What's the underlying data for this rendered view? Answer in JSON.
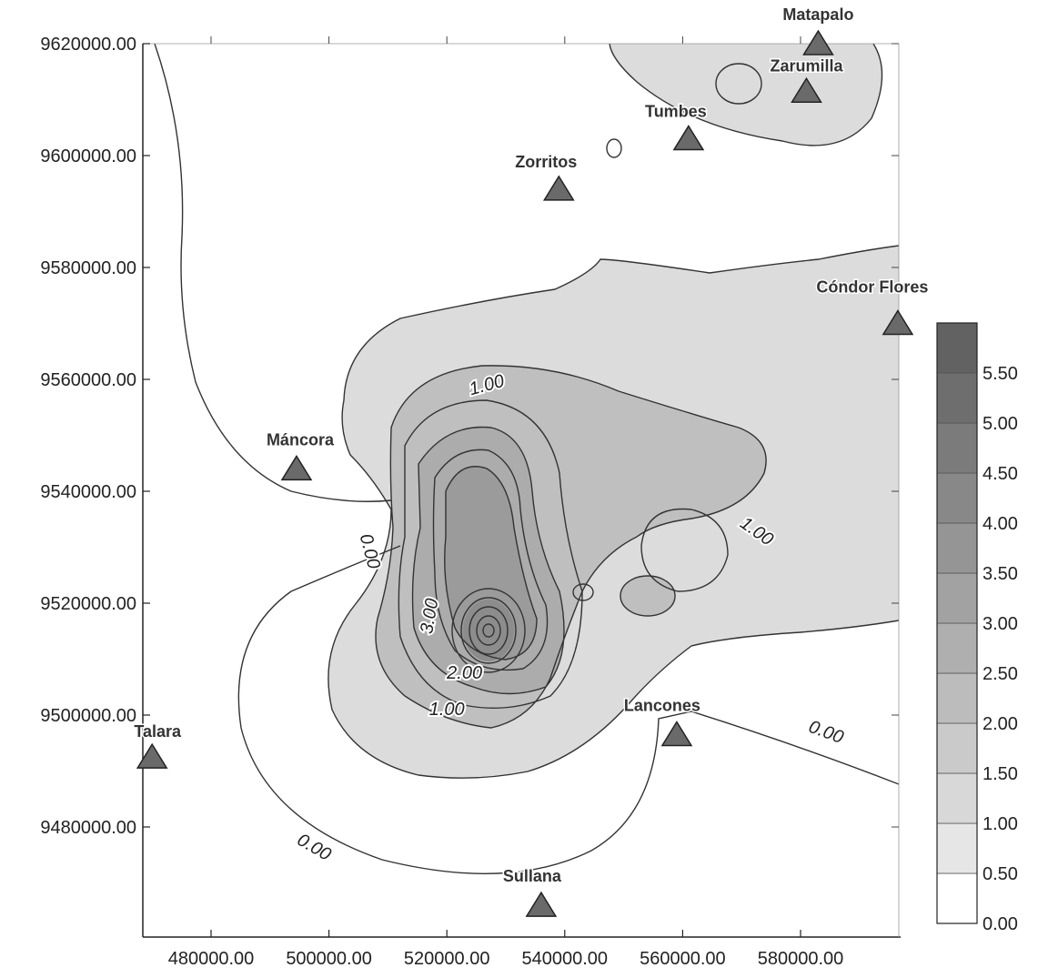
{
  "map": {
    "type": "contour",
    "y_axis": {
      "ticks": [
        9620000,
        9600000,
        9580000,
        9560000,
        9540000,
        9520000,
        9500000,
        9480000
      ],
      "tick_labels": [
        "9620000.00",
        "9600000.00",
        "9580000.00",
        "9560000.00",
        "9540000.00",
        "9520000.00",
        "9500000.00",
        "9480000.00"
      ]
    },
    "x_axis": {
      "ticks": [
        480000,
        500000,
        520000,
        540000,
        560000,
        580000
      ],
      "tick_labels": [
        "480000.00",
        "500000.00",
        "520000.00",
        "540000.00",
        "560000.00",
        "580000.00"
      ]
    },
    "stations": [
      {
        "name": "Matapalo",
        "x": 583000,
        "y": 9620000
      },
      {
        "name": "Zarumilla",
        "x": 581000,
        "y": 9611500
      },
      {
        "name": "Tumbes",
        "x": 561000,
        "y": 9603000
      },
      {
        "name": "Zorritos",
        "x": 539000,
        "y": 9594000
      },
      {
        "name": "Cóndor Flores",
        "x": 596500,
        "y": 9570000
      },
      {
        "name": "Máncora",
        "x": 494500,
        "y": 9544000
      },
      {
        "name": "Talara",
        "x": 470000,
        "y": 9492500
      },
      {
        "name": "Lancones",
        "x": 559000,
        "y": 9496500
      },
      {
        "name": "Sullana",
        "x": 536000,
        "y": 9466000
      }
    ],
    "contour_labels": [
      {
        "text": "1.00",
        "x": 527000,
        "y": 9558000
      },
      {
        "text": "1.00",
        "x": 572000,
        "y": 9532000
      },
      {
        "text": "0.00",
        "x": 506000,
        "y": 9529000
      },
      {
        "text": "3.00",
        "x": 518000,
        "y": 9517500
      },
      {
        "text": "2.00",
        "x": 523000,
        "y": 9506500
      },
      {
        "text": "1.00",
        "x": 520000,
        "y": 9500000
      },
      {
        "text": "0.00",
        "x": 584000,
        "y": 9496000
      },
      {
        "text": "0.00",
        "x": 497000,
        "y": 9475500
      }
    ],
    "legend": {
      "labels": [
        "5.50",
        "5.00",
        "4.50",
        "4.00",
        "3.50",
        "3.00",
        "2.50",
        "2.00",
        "1.50",
        "1.00",
        "0.50",
        "0.00"
      ],
      "levels": [
        0.0,
        0.5,
        1.0,
        1.5,
        2.0,
        2.5,
        3.0,
        3.5,
        4.0,
        4.5,
        5.0,
        5.5,
        6.0
      ],
      "colors": [
        "#ffffff",
        "#e6e6e6",
        "#d8d8d8",
        "#cacaca",
        "#bcbcbc",
        "#afafaf",
        "#a2a2a2",
        "#959595",
        "#888888",
        "#7b7b7b",
        "#6e6e6e",
        "#626262"
      ]
    },
    "colors": {
      "fill_low": "#dcdcdc",
      "fill_mid": "#bfbfbf",
      "fill_high": "#8c8c8c",
      "contour_line": "#333333",
      "station_fill": "#6a6a6a",
      "station_stroke": "#222222"
    }
  }
}
